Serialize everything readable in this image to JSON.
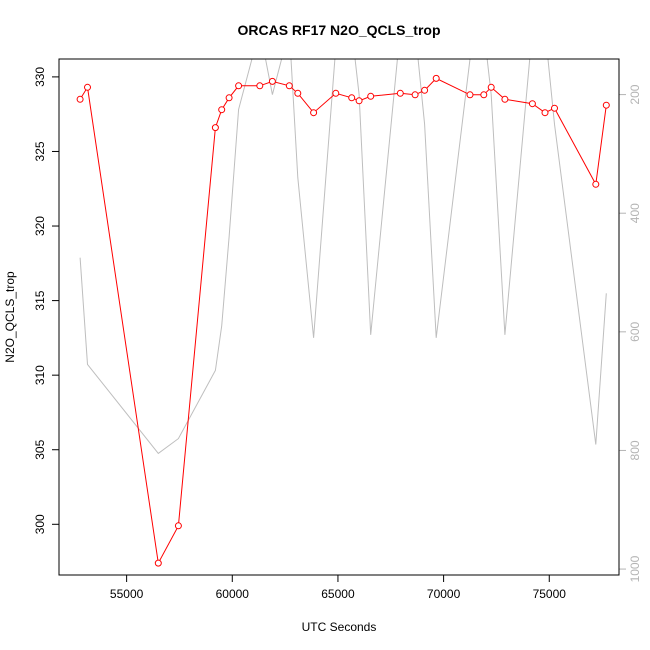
{
  "chart_data": {
    "type": "line",
    "title": "ORCAS RF17 N2O_QCLS_trop",
    "xlabel": "UTC Seconds",
    "ylabel": "N2O_QCLS_trop",
    "xlim": [
      51800,
      78300
    ],
    "ylim": [
      296.6,
      331.2
    ],
    "y2lim": [
      1010,
      140
    ],
    "x_ticks": [
      55000,
      60000,
      65000,
      70000,
      75000
    ],
    "y_ticks": [
      300,
      305,
      310,
      315,
      320,
      325,
      330
    ],
    "y2_ticks": [
      200,
      400,
      600,
      800,
      1000
    ],
    "series": [
      {
        "color": "#ff0000",
        "marker": "open-circle",
        "axis": "left",
        "x": [
          52800,
          53150,
          56500,
          57450,
          59200,
          59500,
          59850,
          60300,
          61300,
          61900,
          62700,
          63100,
          63850,
          64900,
          65650,
          66000,
          66550,
          67950,
          68650,
          69100,
          69650,
          71250,
          71900,
          72250,
          72900,
          74200,
          74800,
          75250,
          77200,
          77700
        ],
        "y": [
          328.5,
          329.3,
          297.4,
          299.9,
          326.6,
          327.8,
          328.6,
          329.4,
          329.4,
          329.7,
          329.4,
          328.9,
          327.6,
          328.9,
          328.6,
          328.4,
          328.7,
          328.9,
          328.8,
          329.1,
          329.9,
          328.8,
          328.8,
          329.3,
          328.5,
          328.2,
          327.6,
          327.9,
          322.8,
          328.1
        ]
      },
      {
        "color": "#bebebe",
        "marker": "none",
        "axis": "right",
        "x": [
          52800,
          53150,
          56500,
          57450,
          59200,
          59500,
          59850,
          60300,
          61300,
          61900,
          62700,
          63100,
          63850,
          64900,
          65650,
          66000,
          66550,
          67950,
          68650,
          69100,
          69650,
          71250,
          71900,
          72250,
          72900,
          74200,
          74800,
          75250,
          77200,
          77700
        ],
        "y": [
          475,
          655,
          805,
          780,
          665,
          590,
          440,
          225,
          90,
          200,
          90,
          340,
          610,
          120,
          90,
          200,
          605,
          90,
          90,
          250,
          610,
          140,
          90,
          200,
          605,
          90,
          90,
          250,
          790,
          535
        ]
      }
    ]
  }
}
